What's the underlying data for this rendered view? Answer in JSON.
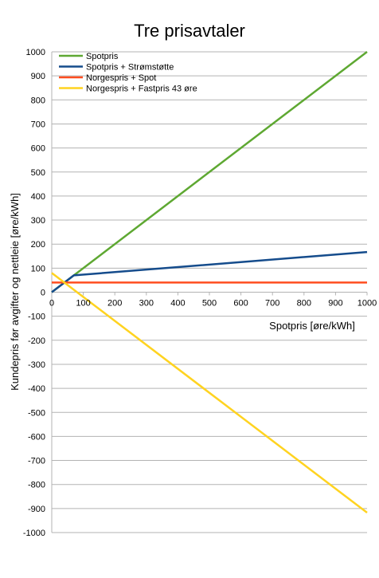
{
  "chart_data": {
    "type": "line",
    "title": "Tre prisavtaler",
    "xlabel": "Spotpris [øre/kWh]",
    "ylabel": "Kundepris før avgifter og nettleie [øre/kWh]",
    "xlim": [
      0,
      1000
    ],
    "ylim": [
      -1000,
      1000
    ],
    "x_ticks": [
      0,
      100,
      200,
      300,
      400,
      500,
      600,
      700,
      800,
      900,
      1000
    ],
    "y_ticks": [
      1000,
      900,
      800,
      700,
      600,
      500,
      400,
      300,
      200,
      100,
      0,
      -100,
      -200,
      -300,
      -400,
      -500,
      -600,
      -700,
      -800,
      -900,
      -1000
    ],
    "grid": true,
    "legend_position": "top-left",
    "series": [
      {
        "name": "Spotpris",
        "color": "#5ea832",
        "x": [
          0,
          1000
        ],
        "y": [
          0,
          1000
        ]
      },
      {
        "name": "Spotpris + Strømstøtte",
        "color": "#154c8c",
        "x": [
          0,
          70,
          1000
        ],
        "y": [
          0,
          70,
          167
        ]
      },
      {
        "name": "Norgespris + Spot",
        "color": "#ff4d1f",
        "x": [
          0,
          1000
        ],
        "y": [
          40,
          40
        ]
      },
      {
        "name": "Norgespris + Fastpris 43 øre",
        "color": "#ffd320",
        "x": [
          0,
          1000
        ],
        "y": [
          80,
          -917
        ]
      }
    ]
  }
}
